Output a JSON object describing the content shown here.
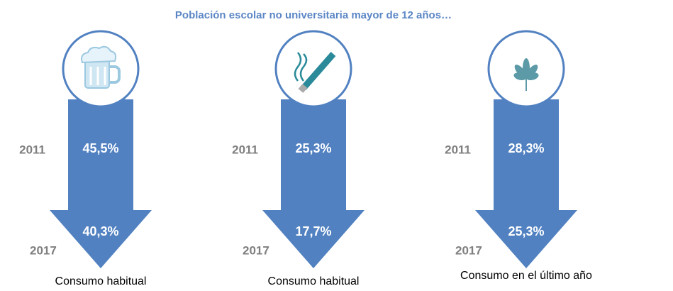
{
  "title": "Población escolar no universitaria mayor de 12 años…",
  "panels": [
    {
      "year_start": "2011",
      "value_start": "45,5%",
      "year_end": "2017",
      "value_end": "40,3%",
      "caption": "Consumo habitual"
    },
    {
      "year_start": "2011",
      "value_start": "25,3%",
      "year_end": "2017",
      "value_end": "17,7%",
      "caption": "Consumo habitual"
    },
    {
      "year_start": "2011",
      "value_start": "28,3%",
      "year_end": "2017",
      "value_end": "25,3%",
      "caption": "Consumo en el último año"
    }
  ]
}
